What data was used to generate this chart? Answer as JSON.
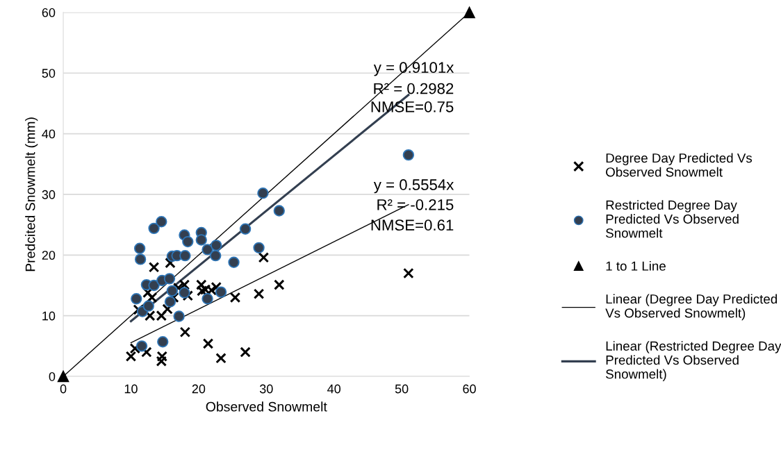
{
  "chart_data": {
    "type": "scatter",
    "xlabel": "Observed Snowmelt",
    "ylabel": "Predcited Snowmelt (mm)",
    "xlim": [
      0,
      60
    ],
    "ylim": [
      0,
      60
    ],
    "xticks": [
      0,
      10,
      20,
      30,
      40,
      50,
      60
    ],
    "yticks": [
      0,
      10,
      20,
      30,
      40,
      50,
      60
    ],
    "grid": "y",
    "legend": "right",
    "series": [
      {
        "name": "Degree Day Predicted Vs\nObserved Snowmelt",
        "marker": "cross",
        "color": "#000000",
        "x": [
          10.0,
          10.6,
          11.1,
          12.5,
          12.3,
          12.8,
          13.1,
          13.4,
          14.5,
          14.6,
          14.5,
          15.4,
          15.8,
          16.3,
          17.0,
          17.9,
          18.0,
          18.4,
          20.4,
          20.5,
          21.0,
          21.4,
          21.9,
          22.6,
          23.3,
          25.4,
          26.9,
          28.9,
          29.6,
          31.9,
          51.0
        ],
        "values": [
          3.3,
          4.6,
          11.0,
          13.8,
          4.0,
          10.0,
          13.0,
          18.0,
          10.0,
          3.3,
          2.5,
          11.1,
          18.7,
          13.0,
          14.6,
          15.1,
          7.3,
          13.3,
          15.1,
          14.1,
          14.3,
          5.4,
          14.2,
          14.7,
          3.0,
          13.0,
          4.0,
          13.6,
          19.6,
          15.1,
          17.0
        ]
      },
      {
        "name": "Restricted Degree Day\nPredicted Vs Observed\nSnowmelt",
        "marker": "circle",
        "color": "#333f50",
        "x": [
          10.8,
          11.3,
          11.4,
          11.6,
          11.7,
          12.3,
          12.6,
          13.4,
          13.4,
          14.5,
          14.7,
          14.6,
          15.7,
          15.8,
          16.1,
          16.1,
          16.8,
          17.1,
          17.9,
          18.0,
          17.9,
          18.4,
          20.4,
          20.4,
          21.3,
          21.3,
          22.5,
          22.6,
          23.3,
          25.2,
          26.9,
          28.9,
          29.5,
          31.9,
          51.0
        ],
        "values": [
          12.8,
          21.1,
          19.3,
          5.0,
          10.7,
          15.1,
          11.6,
          15.0,
          24.4,
          25.5,
          5.7,
          15.8,
          16.1,
          12.3,
          14.1,
          19.8,
          19.9,
          9.9,
          23.3,
          19.9,
          13.8,
          22.2,
          23.7,
          22.5,
          20.9,
          12.8,
          19.9,
          21.6,
          13.9,
          18.8,
          24.3,
          21.2,
          30.2,
          27.3,
          36.5
        ]
      },
      {
        "name": "1 to 1 Line",
        "type": "line",
        "marker": "triangle",
        "line_style": "solid",
        "color": "#000000",
        "x": [
          0,
          60
        ],
        "values": [
          0,
          60
        ]
      },
      {
        "name": "Linear (Degree Day Predicted\nVs Observed Snowmelt)",
        "type": "line",
        "marker": "none",
        "line_style": "solid",
        "color": "#000000",
        "x": [
          10.0,
          51.0
        ],
        "values": [
          5.55,
          28.3
        ]
      },
      {
        "name": "Linear (Restricted Degree Day\nPredicted Vs Observed\nSnowmelt)",
        "type": "line",
        "marker": "none",
        "line_style": "solid",
        "color": "#333f50",
        "x": [
          10.0,
          51.0
        ],
        "values": [
          9.1,
          46.4
        ]
      }
    ],
    "annotations": [
      "y = 0.9101x",
      "R² = 0.2982",
      "NMSE=0.75",
      "y = 0.5554x",
      "R² = -0.215",
      "NMSE=0.61"
    ]
  }
}
